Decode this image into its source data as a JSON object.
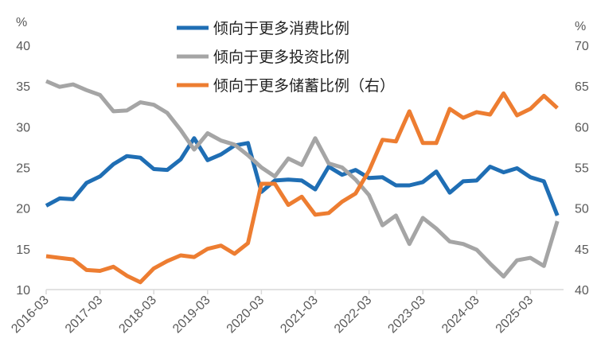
{
  "chart_data": {
    "type": "line",
    "left_unit": "%",
    "right_unit": "%",
    "ylim_left": [
      10,
      40
    ],
    "ylim_right": [
      40,
      70
    ],
    "yticks_left": [
      "10",
      "15",
      "20",
      "25",
      "30",
      "35",
      "40"
    ],
    "yticks_right": [
      "40",
      "45",
      "50",
      "55",
      "60",
      "65",
      "70"
    ],
    "xtick_labels": [
      "2016-03",
      "2017-03",
      "2018-03",
      "2019-03",
      "2020-03",
      "2021-03",
      "2022-03",
      "2023-03",
      "2024-03",
      "2025-03"
    ],
    "x_start": "2016-03",
    "x_frequency": "quarterly",
    "legend_position": "top-center",
    "grid": false,
    "series": [
      {
        "name": "倾向于更多消费比例",
        "axis": "left",
        "color": "#1F6EB4",
        "values": [
          20.3,
          21.2,
          21.1,
          23.1,
          23.9,
          25.4,
          26.4,
          26.2,
          24.8,
          24.7,
          26.0,
          28.6,
          25.9,
          26.6,
          27.7,
          28.0,
          22.0,
          23.4,
          23.5,
          23.4,
          22.3,
          25.1,
          24.1,
          24.7,
          23.7,
          23.8,
          22.8,
          22.8,
          23.2,
          24.5,
          21.9,
          23.3,
          23.4,
          25.1,
          24.4,
          24.9,
          23.8,
          23.3,
          19.1
        ]
      },
      {
        "name": "倾向于更多投资比例",
        "axis": "left",
        "color": "#A5A5A5",
        "values": [
          35.6,
          34.9,
          35.2,
          34.5,
          33.9,
          31.9,
          32.0,
          33.0,
          32.7,
          31.7,
          29.6,
          27.2,
          29.2,
          28.3,
          27.8,
          26.5,
          25.0,
          23.9,
          26.1,
          25.3,
          28.6,
          25.5,
          25.0,
          23.5,
          21.6,
          17.9,
          19.1,
          15.6,
          18.8,
          17.5,
          15.9,
          15.6,
          14.9,
          13.2,
          11.6,
          13.6,
          13.9,
          12.9,
          18.4
        ]
      },
      {
        "name": "倾向于更多储蓄比例（右）",
        "axis": "right",
        "color": "#ED7D31",
        "values": [
          44.1,
          43.9,
          43.7,
          42.4,
          42.3,
          42.8,
          41.7,
          40.9,
          42.6,
          43.5,
          44.2,
          44.0,
          45.0,
          45.4,
          44.4,
          45.7,
          53.0,
          53.0,
          50.4,
          51.4,
          49.2,
          49.4,
          50.8,
          51.8,
          54.6,
          58.4,
          58.2,
          61.9,
          58.0,
          58.0,
          62.2,
          61.1,
          61.8,
          61.5,
          64.1,
          61.4,
          62.2,
          63.8,
          62.3
        ]
      }
    ]
  }
}
